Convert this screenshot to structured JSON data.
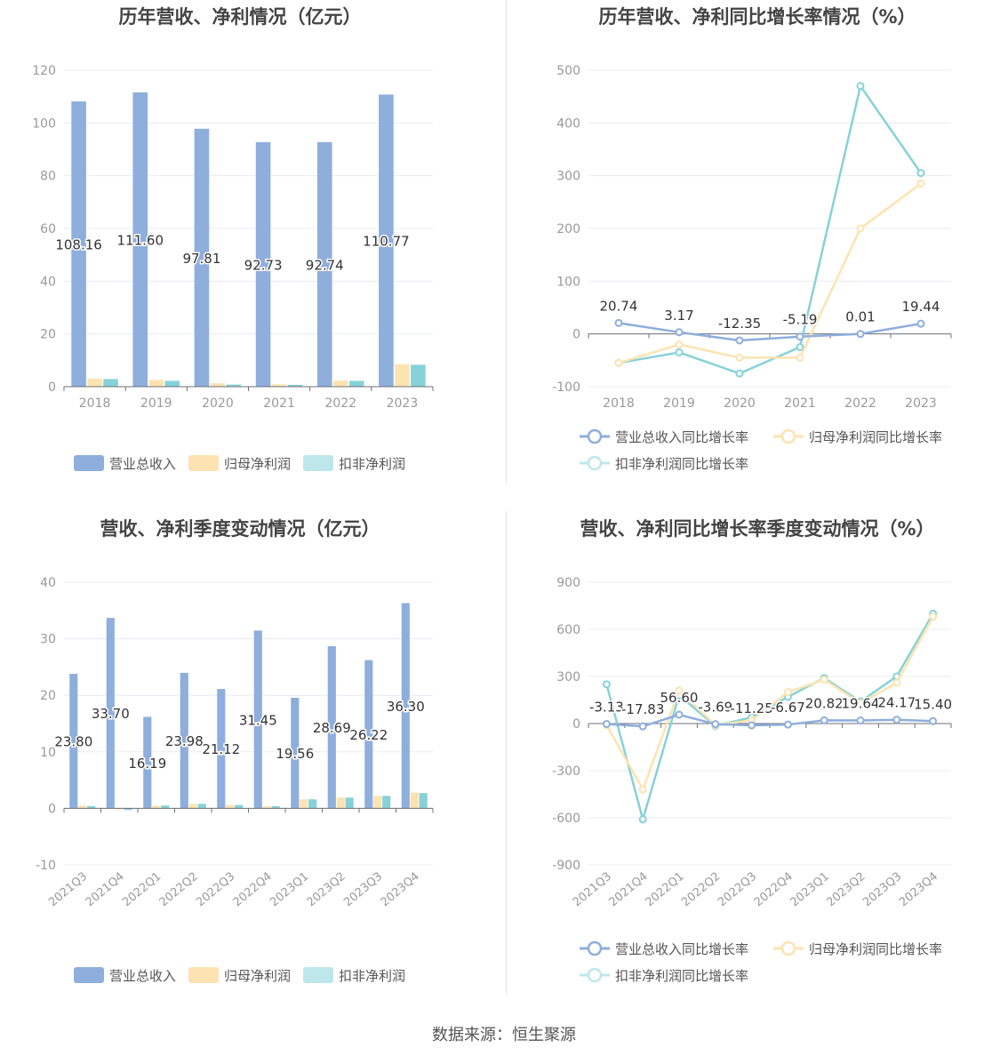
{
  "source_text": "数据来源：恒生聚源",
  "colors": {
    "revenue": "#8eaedc",
    "parent_profit": "#fde3b1",
    "deducted_profit": "#86d2d8",
    "deducted_legend": "#bde7eb",
    "grid": "#e8ecf4",
    "axis_text": "#999999",
    "title": "#444444",
    "label": "#333333"
  },
  "chart_data": [
    {
      "id": "annual_bar",
      "type": "bar",
      "title": "历年营收、净利情况（亿元）",
      "categories": [
        "2018",
        "2019",
        "2020",
        "2021",
        "2022",
        "2023"
      ],
      "series": [
        {
          "name": "营业总收入",
          "values": [
            108.16,
            111.6,
            97.81,
            92.73,
            92.74,
            110.77
          ]
        },
        {
          "name": "归母净利润",
          "values": [
            3.1,
            2.6,
            1.3,
            0.9,
            2.3,
            8.5
          ]
        },
        {
          "name": "扣非净利润",
          "values": [
            2.9,
            2.2,
            0.8,
            0.7,
            2.2,
            8.3
          ]
        }
      ],
      "data_labels": [
        "108.16",
        "111.60",
        "97.81",
        "92.73",
        "92.74",
        "110.77"
      ],
      "ylim": [
        0,
        120
      ],
      "yticks": [
        0,
        20,
        40,
        60,
        80,
        100,
        120
      ],
      "grid": true,
      "legend_position": "bottom"
    },
    {
      "id": "annual_line",
      "type": "line",
      "title": "历年营收、净利同比增长率情况（%）",
      "categories": [
        "2018",
        "2019",
        "2020",
        "2021",
        "2022",
        "2023"
      ],
      "series": [
        {
          "name": "营业总收入同比增长率",
          "values": [
            20.74,
            3.17,
            -12.35,
            -5.19,
            0.01,
            19.44
          ]
        },
        {
          "name": "归母净利润同比增长率",
          "values": [
            -55,
            -20,
            -45,
            -45,
            200,
            285
          ]
        },
        {
          "name": "扣非净利润同比增长率",
          "values": [
            -55,
            -35,
            -75,
            -25,
            470,
            305
          ]
        }
      ],
      "data_labels": [
        "20.74",
        "3.17",
        "-12.35",
        "-5.19",
        "0.01",
        "19.44"
      ],
      "ylim": [
        -100,
        500
      ],
      "yticks": [
        -100,
        0,
        100,
        200,
        300,
        400,
        500
      ],
      "grid": true,
      "legend_position": "bottom"
    },
    {
      "id": "quarter_bar",
      "type": "bar",
      "title": "营收、净利季度变动情况（亿元）",
      "categories": [
        "2021Q3",
        "2021Q4",
        "2022Q1",
        "2022Q2",
        "2022Q3",
        "2022Q4",
        "2023Q1",
        "2023Q2",
        "2023Q3",
        "2023Q4"
      ],
      "series": [
        {
          "name": "营业总收入",
          "values": [
            23.8,
            33.7,
            16.19,
            23.98,
            21.12,
            31.45,
            19.56,
            28.69,
            26.22,
            36.3
          ]
        },
        {
          "name": "归母净利润",
          "values": [
            0.5,
            -0.2,
            0.5,
            0.8,
            0.6,
            0.4,
            1.6,
            1.9,
            2.2,
            2.8
          ]
        },
        {
          "name": "扣非净利润",
          "values": [
            0.4,
            -0.3,
            0.5,
            0.8,
            0.6,
            0.4,
            1.6,
            1.9,
            2.2,
            2.7
          ]
        }
      ],
      "data_labels": [
        "23.80",
        "33.70",
        "16.19",
        "23.98",
        "21.12",
        "31.45",
        "19.56",
        "28.69",
        "26.22",
        "36.30"
      ],
      "ylim": [
        -10,
        40
      ],
      "yticks": [
        -10,
        0,
        10,
        20,
        30,
        40
      ],
      "grid": true,
      "legend_position": "bottom"
    },
    {
      "id": "quarter_line",
      "type": "line",
      "title": "营收、净利同比增长率季度变动情况（%）",
      "categories": [
        "2021Q3",
        "2021Q4",
        "2022Q1",
        "2022Q2",
        "2022Q3",
        "2022Q4",
        "2023Q1",
        "2023Q2",
        "2023Q3",
        "2023Q4"
      ],
      "series": [
        {
          "name": "营业总收入同比增长率",
          "values": [
            -3.13,
            -17.83,
            56.6,
            -3.69,
            -11.25,
            -6.67,
            20.82,
            19.64,
            24.17,
            15.4
          ]
        },
        {
          "name": "归母净利润同比增长率",
          "values": [
            -10,
            -420,
            210,
            -10,
            20,
            200,
            280,
            130,
            260,
            680
          ]
        },
        {
          "name": "扣非净利润同比增长率",
          "values": [
            250,
            -610,
            180,
            -15,
            40,
            170,
            290,
            140,
            300,
            700
          ]
        }
      ],
      "data_labels": [
        "-3.13",
        "-17.83",
        "56.60",
        "-3.69",
        "-11.25",
        "-6.67",
        "20.82",
        "19.64",
        "24.17",
        "15.40"
      ],
      "ylim": [
        -900,
        900
      ],
      "yticks": [
        -900,
        -600,
        -300,
        0,
        300,
        600,
        900
      ],
      "grid": true,
      "legend_position": "bottom"
    }
  ]
}
